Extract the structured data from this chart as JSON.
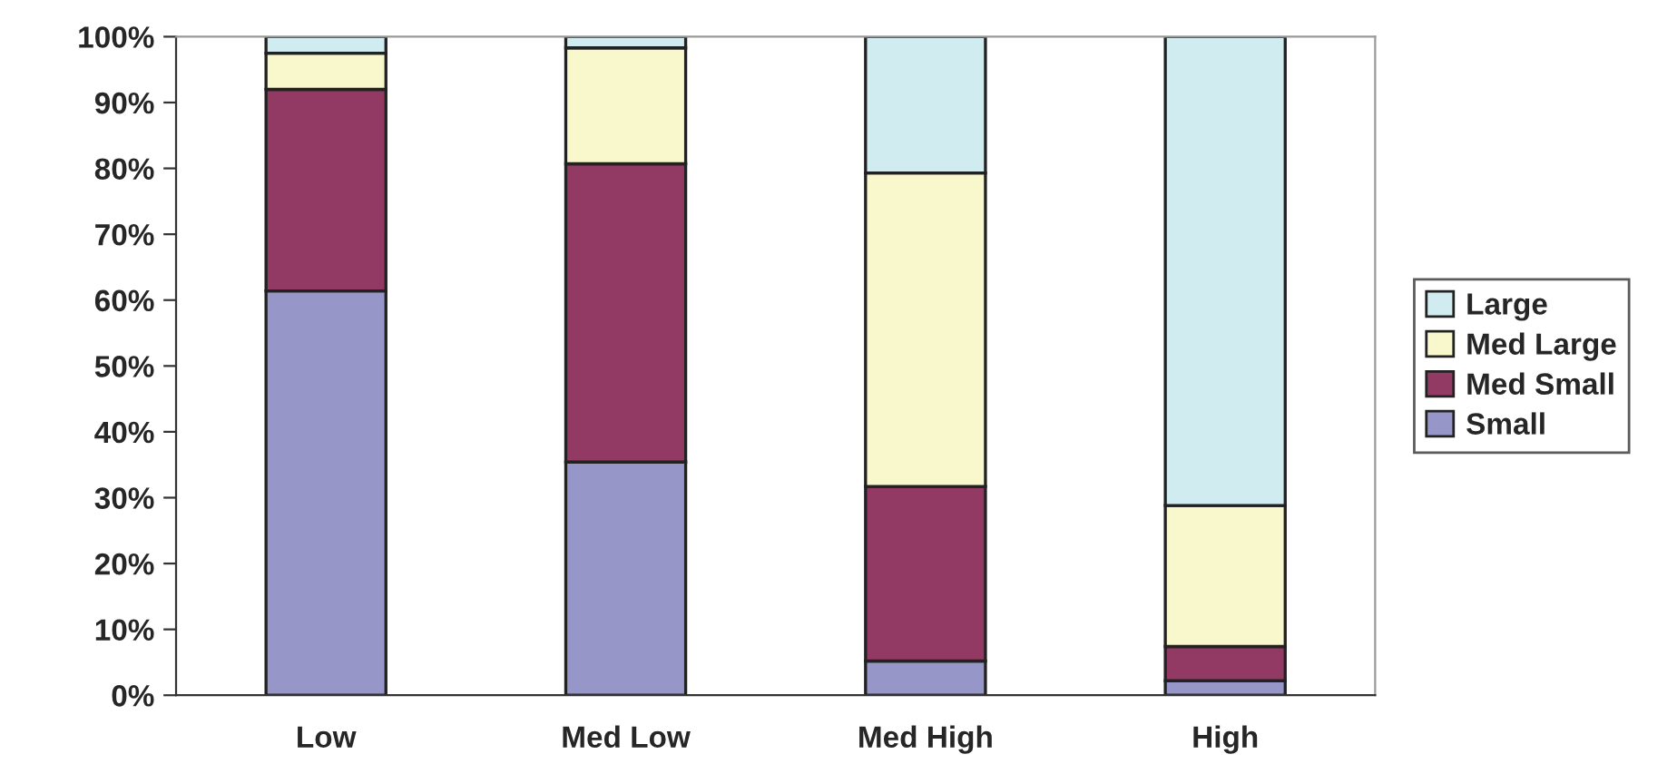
{
  "chart_data": {
    "type": "bar",
    "stacked": true,
    "categories": [
      "Low",
      "Med Low",
      "Med High",
      "High"
    ],
    "series": [
      {
        "name": "Small",
        "color": "#9696c8",
        "values": [
          61.4,
          35.4,
          5.2,
          2.2
        ]
      },
      {
        "name": "Med Small",
        "color": "#923a63",
        "values": [
          30.6,
          45.3,
          26.5,
          5.2
        ]
      },
      {
        "name": "Med Large",
        "color": "#f9f7cc",
        "values": [
          5.5,
          17.6,
          47.6,
          21.4
        ]
      },
      {
        "name": "Large",
        "color": "#d0ecf0",
        "values": [
          2.5,
          1.7,
          20.7,
          71.2
        ]
      }
    ],
    "ylim": [
      0,
      100
    ],
    "yticks": [
      {
        "value": 0,
        "label": "0%"
      },
      {
        "value": 10,
        "label": "10%"
      },
      {
        "value": 20,
        "label": "20%"
      },
      {
        "value": 30,
        "label": "30%"
      },
      {
        "value": 40,
        "label": "40%"
      },
      {
        "value": 50,
        "label": "50%"
      },
      {
        "value": 60,
        "label": "60%"
      },
      {
        "value": 70,
        "label": "70%"
      },
      {
        "value": 80,
        "label": "80%"
      },
      {
        "value": 90,
        "label": "90%"
      },
      {
        "value": 100,
        "label": "100%"
      }
    ],
    "grid": false,
    "legend": "right"
  }
}
